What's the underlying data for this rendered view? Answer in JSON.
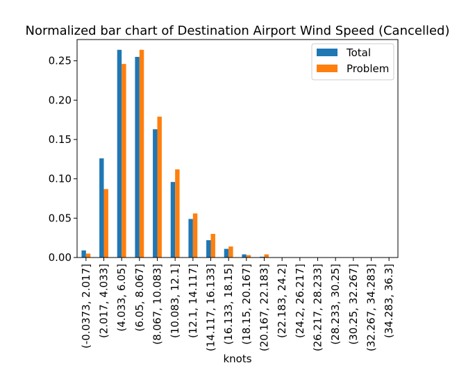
{
  "chart_data": {
    "type": "bar",
    "title": "Normalized bar chart of Destination Airport Wind Speed (Cancelled)",
    "xlabel": "knots",
    "ylabel": "",
    "ylim": [
      0,
      0.277
    ],
    "yticks": [
      "0.00",
      "0.05",
      "0.10",
      "0.15",
      "0.20",
      "0.25"
    ],
    "ytick_values": [
      0,
      0.05,
      0.1,
      0.15,
      0.2,
      0.25
    ],
    "grid": false,
    "legend_position": "top-right",
    "categories": [
      "(-0.0373, 2.017]",
      "(2.017, 4.033]",
      "(4.033, 6.05]",
      "(6.05, 8.067]",
      "(8.067, 10.083]",
      "(10.083, 12.1]",
      "(12.1, 14.117]",
      "(14.117, 16.133]",
      "(16.133, 18.15]",
      "(18.15, 20.167]",
      "(20.167, 22.183]",
      "(22.183, 24.2]",
      "(24.2, 26.217]",
      "(26.217, 28.233]",
      "(28.233, 30.25]",
      "(30.25, 32.267]",
      "(32.267, 34.283]",
      "(34.283, 36.3]"
    ],
    "series": [
      {
        "name": "Total",
        "color": "#1f77b4",
        "values": [
          0.009,
          0.126,
          0.264,
          0.255,
          0.163,
          0.096,
          0.049,
          0.022,
          0.011,
          0.004,
          0.001,
          0,
          0,
          0,
          0,
          0,
          0,
          0
        ]
      },
      {
        "name": "Problem",
        "color": "#ff7f0e",
        "values": [
          0.005,
          0.087,
          0.246,
          0.264,
          0.179,
          0.112,
          0.056,
          0.03,
          0.014,
          0.003,
          0.004,
          0,
          0,
          0,
          0,
          0,
          0,
          0
        ]
      }
    ]
  }
}
